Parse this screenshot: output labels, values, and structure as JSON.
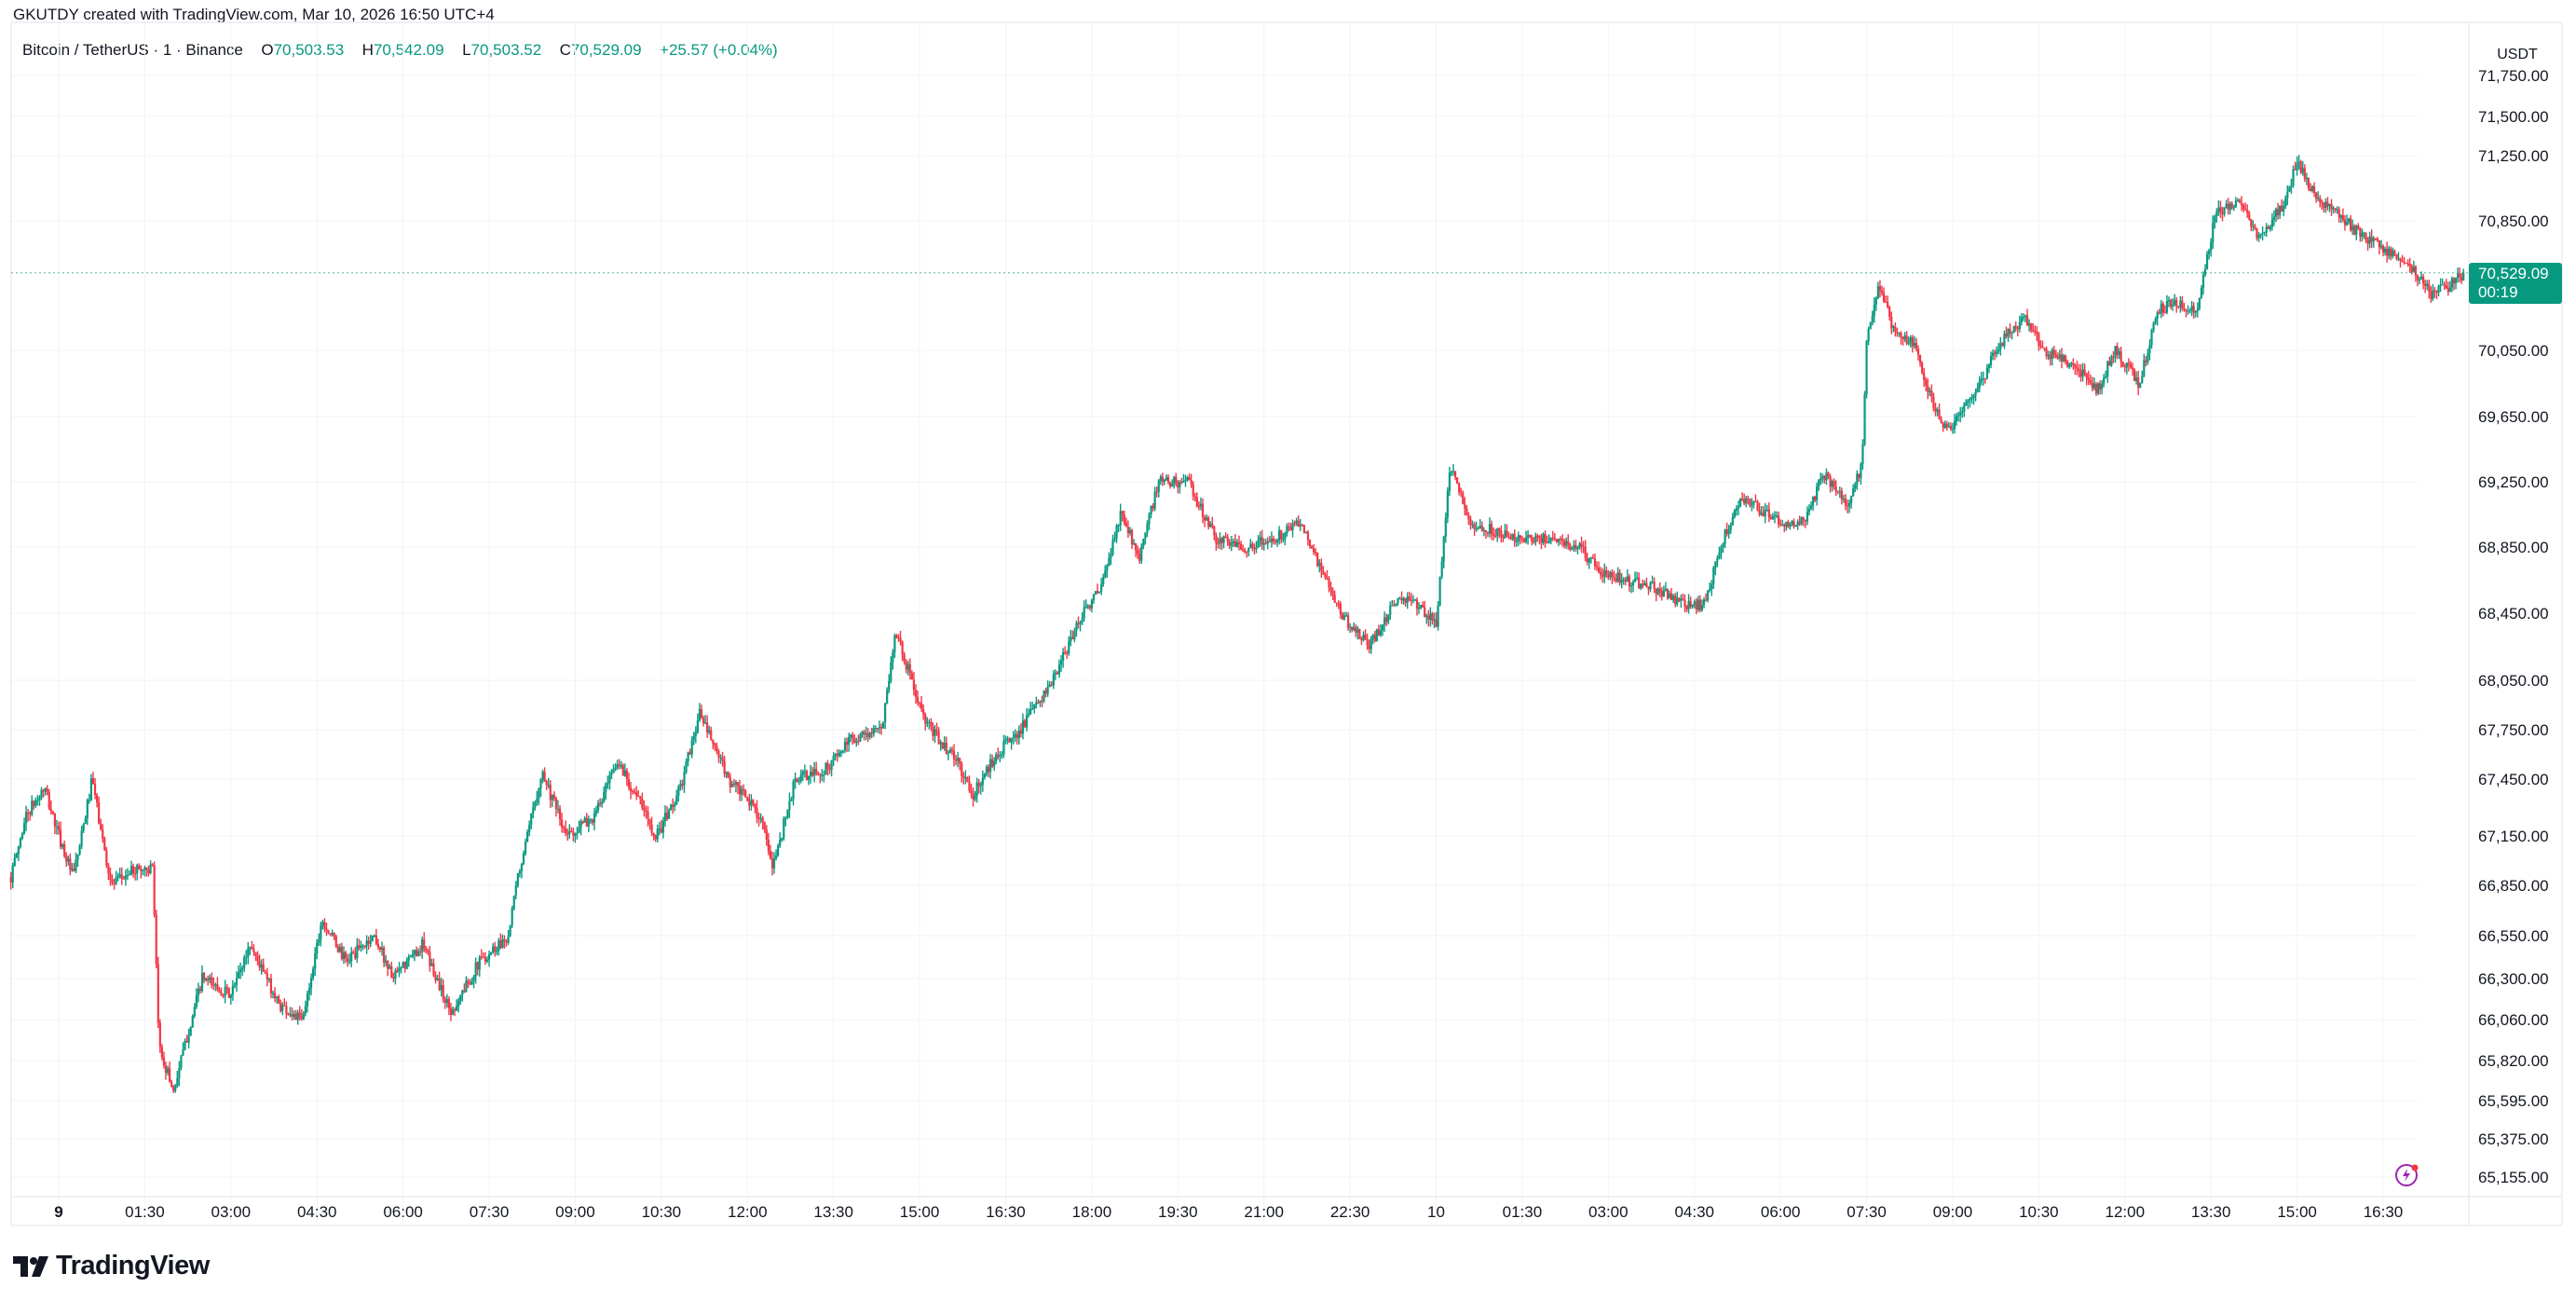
{
  "header": {
    "credit": "GKUTDY created with TradingView.com, Mar 10, 2026 16:50 UTC+4"
  },
  "legend": {
    "symbol": "Bitcoin / TetherUS · 1 · Binance",
    "open_label": "O",
    "open": "70,503.53",
    "high_label": "H",
    "high": "70,542.09",
    "low_label": "L",
    "low": "70,503.52",
    "close_label": "C",
    "close": "70,529.09",
    "change": "+25.57 (+0.04%)"
  },
  "price_axis": {
    "currency": "USDT"
  },
  "last_price": {
    "price": "70,529.09",
    "countdown": "00:19"
  },
  "branding": {
    "logo_text": "TradingView"
  },
  "colors": {
    "up": "#089981",
    "down": "#F23645",
    "grid": "#F0F3FA",
    "text": "#131722",
    "accent": "#089981"
  },
  "icons": {
    "logo": "tradingview-logo-icon",
    "bolt": "lightning-bolt-icon"
  },
  "chart_data": {
    "type": "candlestick",
    "title": "Bitcoin / TetherUS · 1 · Binance",
    "xlabel": "",
    "ylabel": "USDT",
    "grid": true,
    "ylim": [
      65080,
      71880
    ],
    "last_price": 70529.09,
    "y_ticks": [
      {
        "value": 71750,
        "label": "71,750.00"
      },
      {
        "value": 71500,
        "label": "71,500.00"
      },
      {
        "value": 71250,
        "label": "71,250.00"
      },
      {
        "value": 70850,
        "label": "70,850.00"
      },
      {
        "value": 70050,
        "label": "70,050.00"
      },
      {
        "value": 69650,
        "label": "69,650.00"
      },
      {
        "value": 69250,
        "label": "69,250.00"
      },
      {
        "value": 68850,
        "label": "68,850.00"
      },
      {
        "value": 68450,
        "label": "68,450.00"
      },
      {
        "value": 68050,
        "label": "68,050.00"
      },
      {
        "value": 67750,
        "label": "67,750.00"
      },
      {
        "value": 67450,
        "label": "67,450.00"
      },
      {
        "value": 67150,
        "label": "67,150.00"
      },
      {
        "value": 66850,
        "label": "66,850.00"
      },
      {
        "value": 66550,
        "label": "66,550.00"
      },
      {
        "value": 66300,
        "label": "66,300.00"
      },
      {
        "value": 66060,
        "label": "66,060.00"
      },
      {
        "value": 65820,
        "label": "65,820.00"
      },
      {
        "value": 65595,
        "label": "65,595.00"
      },
      {
        "value": 65375,
        "label": "65,375.00"
      },
      {
        "value": 65155,
        "label": "65,155.00"
      }
    ],
    "x_ticks": [
      {
        "t": 0,
        "label": "9",
        "bold": true
      },
      {
        "t": 90,
        "label": "01:30"
      },
      {
        "t": 180,
        "label": "03:00"
      },
      {
        "t": 270,
        "label": "04:30"
      },
      {
        "t": 360,
        "label": "06:00"
      },
      {
        "t": 450,
        "label": "07:30"
      },
      {
        "t": 540,
        "label": "09:00"
      },
      {
        "t": 630,
        "label": "10:30"
      },
      {
        "t": 720,
        "label": "12:00"
      },
      {
        "t": 810,
        "label": "13:30"
      },
      {
        "t": 900,
        "label": "15:00"
      },
      {
        "t": 990,
        "label": "16:30"
      },
      {
        "t": 1080,
        "label": "18:00"
      },
      {
        "t": 1170,
        "label": "19:30"
      },
      {
        "t": 1260,
        "label": "21:00"
      },
      {
        "t": 1350,
        "label": "22:30"
      },
      {
        "t": 1440,
        "label": "10"
      },
      {
        "t": 1530,
        "label": "01:30"
      },
      {
        "t": 1620,
        "label": "03:00"
      },
      {
        "t": 1710,
        "label": "04:30"
      },
      {
        "t": 1800,
        "label": "06:00"
      },
      {
        "t": 1890,
        "label": "07:30"
      },
      {
        "t": 1980,
        "label": "09:00"
      },
      {
        "t": 2070,
        "label": "10:30"
      },
      {
        "t": 2160,
        "label": "12:00"
      },
      {
        "t": 2250,
        "label": "13:30"
      },
      {
        "t": 2340,
        "label": "15:00"
      },
      {
        "t": 2430,
        "label": "16:30"
      }
    ],
    "series_anchors_minutes_price": [
      [
        -50,
        66900
      ],
      [
        -35,
        67250
      ],
      [
        -15,
        67400
      ],
      [
        0,
        67150
      ],
      [
        15,
        66900
      ],
      [
        35,
        67450
      ],
      [
        55,
        66850
      ],
      [
        80,
        66950
      ],
      [
        98,
        66950
      ],
      [
        105,
        65900
      ],
      [
        120,
        65650
      ],
      [
        150,
        66300
      ],
      [
        180,
        66200
      ],
      [
        200,
        66500
      ],
      [
        230,
        66150
      ],
      [
        255,
        66050
      ],
      [
        275,
        66650
      ],
      [
        300,
        66400
      ],
      [
        330,
        66550
      ],
      [
        350,
        66300
      ],
      [
        380,
        66500
      ],
      [
        410,
        66100
      ],
      [
        440,
        66400
      ],
      [
        470,
        66550
      ],
      [
        480,
        66900
      ],
      [
        505,
        67500
      ],
      [
        530,
        67150
      ],
      [
        560,
        67250
      ],
      [
        585,
        67550
      ],
      [
        600,
        67400
      ],
      [
        625,
        67150
      ],
      [
        650,
        67400
      ],
      [
        670,
        67850
      ],
      [
        700,
        67450
      ],
      [
        735,
        67250
      ],
      [
        745,
        66950
      ],
      [
        770,
        67450
      ],
      [
        800,
        67500
      ],
      [
        830,
        67700
      ],
      [
        860,
        67750
      ],
      [
        875,
        68350
      ],
      [
        905,
        67800
      ],
      [
        940,
        67550
      ],
      [
        955,
        67350
      ],
      [
        980,
        67600
      ],
      [
        1005,
        67750
      ],
      [
        1040,
        68050
      ],
      [
        1070,
        68450
      ],
      [
        1090,
        68600
      ],
      [
        1110,
        69050
      ],
      [
        1130,
        68800
      ],
      [
        1150,
        69250
      ],
      [
        1180,
        69250
      ],
      [
        1210,
        68900
      ],
      [
        1240,
        68850
      ],
      [
        1270,
        68900
      ],
      [
        1300,
        69000
      ],
      [
        1320,
        68700
      ],
      [
        1340,
        68450
      ],
      [
        1370,
        68250
      ],
      [
        1400,
        68550
      ],
      [
        1420,
        68500
      ],
      [
        1440,
        68400
      ],
      [
        1455,
        69350
      ],
      [
        1475,
        69000
      ],
      [
        1500,
        68950
      ],
      [
        1530,
        68900
      ],
      [
        1560,
        68900
      ],
      [
        1590,
        68850
      ],
      [
        1610,
        68700
      ],
      [
        1640,
        68650
      ],
      [
        1670,
        68600
      ],
      [
        1700,
        68500
      ],
      [
        1720,
        68500
      ],
      [
        1740,
        68900
      ],
      [
        1760,
        69150
      ],
      [
        1785,
        69050
      ],
      [
        1800,
        69000
      ],
      [
        1825,
        69000
      ],
      [
        1845,
        69300
      ],
      [
        1870,
        69100
      ],
      [
        1885,
        69350
      ],
      [
        1890,
        70100
      ],
      [
        1902,
        70450
      ],
      [
        1920,
        70150
      ],
      [
        1940,
        70100
      ],
      [
        1960,
        69700
      ],
      [
        1975,
        69550
      ],
      [
        2000,
        69750
      ],
      [
        2030,
        70100
      ],
      [
        2055,
        70250
      ],
      [
        2075,
        70050
      ],
      [
        2110,
        69950
      ],
      [
        2130,
        69800
      ],
      [
        2150,
        70050
      ],
      [
        2175,
        69850
      ],
      [
        2195,
        70300
      ],
      [
        2215,
        70350
      ],
      [
        2235,
        70300
      ],
      [
        2255,
        70900
      ],
      [
        2280,
        70950
      ],
      [
        2300,
        70750
      ],
      [
        2325,
        70950
      ],
      [
        2340,
        71200
      ],
      [
        2360,
        71000
      ],
      [
        2380,
        70900
      ],
      [
        2410,
        70750
      ],
      [
        2440,
        70650
      ],
      [
        2460,
        70550
      ],
      [
        2480,
        70400
      ],
      [
        2500,
        70450
      ],
      [
        2515,
        70529
      ]
    ]
  }
}
